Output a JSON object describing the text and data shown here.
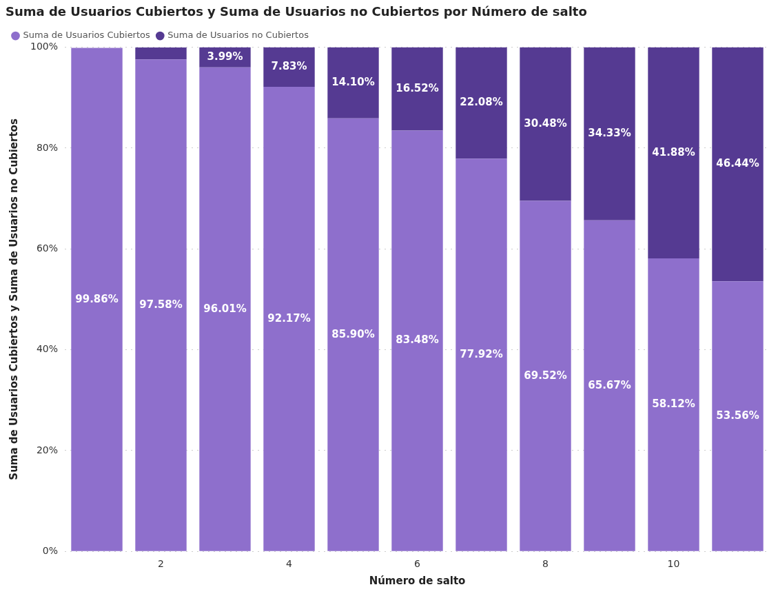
{
  "chart_data": {
    "type": "bar",
    "title": "Suma de Usuarios Cubiertos y Suma de Usuarios no Cubiertos por Número de salto",
    "xlabel": "Número de salto",
    "ylabel": "Suma de Usuarios Cubiertos y Suma de Usuarios no Cubiertos",
    "categories": [
      null,
      "2",
      null,
      "4",
      null,
      "6",
      null,
      "8",
      null,
      "10",
      null
    ],
    "stacked": true,
    "series": [
      {
        "name": "Suma de Usuarios Cubiertos",
        "color": "#8e6fcc",
        "values": [
          99.86,
          97.58,
          96.01,
          92.17,
          85.9,
          83.48,
          77.92,
          69.52,
          65.67,
          58.12,
          53.56
        ],
        "value_labels": [
          "99.86%",
          "97.58%",
          "96.01%",
          "92.17%",
          "85.90%",
          "83.48%",
          "77.92%",
          "69.52%",
          "65.67%",
          "58.12%",
          "53.56%"
        ]
      },
      {
        "name": "Suma de Usuarios no Cubiertos",
        "color": "#553a92",
        "values": [
          null,
          2.4,
          3.99,
          7.83,
          14.1,
          16.52,
          22.08,
          30.48,
          34.33,
          41.88,
          46.44
        ],
        "value_labels": [
          null,
          null,
          "3.99%",
          "7.83%",
          "14.10%",
          "16.52%",
          "22.08%",
          "30.48%",
          "34.33%",
          "41.88%",
          "46.44%"
        ]
      }
    ],
    "ylim": [
      0,
      100
    ],
    "yticks": [
      {
        "value": 0,
        "label": "0%"
      },
      {
        "value": 20,
        "label": "20%"
      },
      {
        "value": 40,
        "label": "40%"
      },
      {
        "value": 60,
        "label": "60%"
      },
      {
        "value": 80,
        "label": "80%"
      },
      {
        "value": 100,
        "label": "100%"
      }
    ],
    "grid": "y",
    "legend": "top left"
  }
}
